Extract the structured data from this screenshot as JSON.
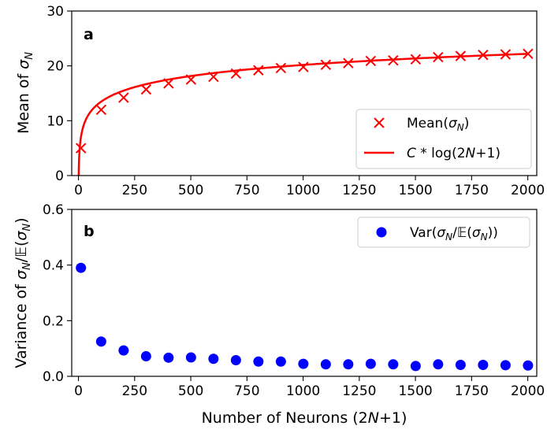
{
  "chart_data": [
    {
      "panel_label": "a",
      "type": "scatter+line",
      "ylabel": "Mean of σ_N",
      "xlabel": "",
      "xlim": [
        -30,
        2040
      ],
      "ylim": [
        0,
        30
      ],
      "xticks": [
        0,
        250,
        500,
        750,
        1000,
        1250,
        1500,
        1750,
        2000
      ],
      "yticks": [
        0,
        10,
        20,
        30
      ],
      "x_tick_labels": [
        "0",
        "250",
        "500",
        "750",
        "1000",
        "1250",
        "1500",
        "1750",
        "2000"
      ],
      "y_tick_labels": [
        "0",
        "10",
        "20",
        "30"
      ],
      "grid": false,
      "legend_position": "bottom-right",
      "scatter": {
        "name": "Mean(σ_N)",
        "color": "#ff0000",
        "marker": "x",
        "x": [
          11,
          101,
          201,
          301,
          401,
          501,
          601,
          701,
          801,
          901,
          1001,
          1101,
          1201,
          1301,
          1401,
          1501,
          1601,
          1701,
          1801,
          1901,
          2001
        ],
        "y": [
          5.0,
          12.0,
          14.2,
          15.7,
          16.8,
          17.5,
          18.0,
          18.6,
          19.2,
          19.6,
          19.8,
          20.2,
          20.5,
          20.9,
          21.0,
          21.2,
          21.6,
          21.8,
          22.0,
          22.1,
          22.2
        ]
      },
      "curve": {
        "name": "C * log(2N+1)",
        "color": "#ff0000",
        "C": 2.92,
        "x_range": [
          1,
          2001
        ]
      }
    },
    {
      "panel_label": "b",
      "type": "scatter",
      "ylabel": "Variance of σ_N/𝔼(σ_N)",
      "xlabel": "Number of Neurons (2N+1)",
      "xlim": [
        -30,
        2040
      ],
      "ylim": [
        0,
        0.6
      ],
      "xticks": [
        0,
        250,
        500,
        750,
        1000,
        1250,
        1500,
        1750,
        2000
      ],
      "yticks": [
        0.0,
        0.2,
        0.4,
        0.6
      ],
      "x_tick_labels": [
        "0",
        "250",
        "500",
        "750",
        "1000",
        "1250",
        "1500",
        "1750",
        "2000"
      ],
      "y_tick_labels": [
        "0.0",
        "0.2",
        "0.4",
        "0.6"
      ],
      "grid": false,
      "legend_position": "top-right",
      "series": [
        {
          "name": "Var(σ_N/𝔼(σ_N))",
          "color": "#0000ff",
          "marker": "o",
          "x": [
            11,
            101,
            201,
            301,
            401,
            501,
            601,
            701,
            801,
            901,
            1001,
            1101,
            1201,
            1301,
            1401,
            1501,
            1601,
            1701,
            1801,
            1901,
            2001
          ],
          "y": [
            0.39,
            0.125,
            0.093,
            0.072,
            0.067,
            0.068,
            0.063,
            0.058,
            0.053,
            0.053,
            0.045,
            0.043,
            0.043,
            0.045,
            0.043,
            0.037,
            0.043,
            0.041,
            0.041,
            0.04,
            0.039
          ]
        }
      ]
    }
  ]
}
